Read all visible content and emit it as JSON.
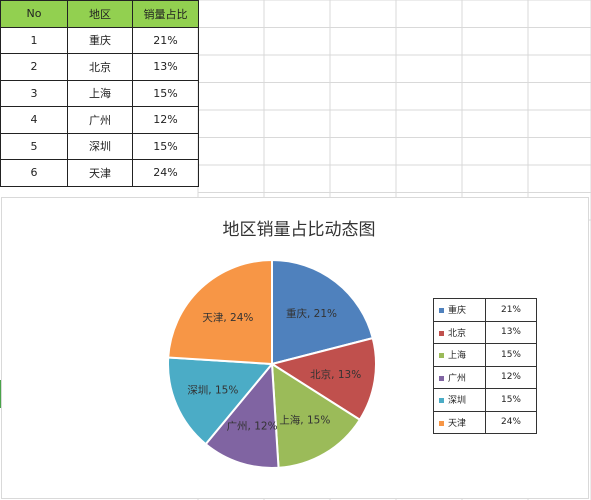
{
  "table": {
    "headers": [
      "No",
      "地区",
      "销量占比"
    ],
    "rows": [
      {
        "no": "1",
        "region": "重庆",
        "share": "21%"
      },
      {
        "no": "2",
        "region": "北京",
        "share": "13%"
      },
      {
        "no": "3",
        "region": "上海",
        "share": "15%"
      },
      {
        "no": "4",
        "region": "广州",
        "share": "12%"
      },
      {
        "no": "5",
        "region": "深圳",
        "share": "15%"
      },
      {
        "no": "6",
        "region": "天津",
        "share": "24%"
      }
    ]
  },
  "chart_data": {
    "type": "pie",
    "title": "地区销量占比动态图",
    "categories": [
      "重庆",
      "北京",
      "上海",
      "广州",
      "深圳",
      "天津"
    ],
    "values": [
      21,
      13,
      15,
      12,
      15,
      24
    ],
    "value_labels": [
      "21%",
      "13%",
      "15%",
      "12%",
      "15%",
      "24%"
    ],
    "colors": [
      "#4f81bd",
      "#c0504d",
      "#9bbb59",
      "#8064a2",
      "#4bacc6",
      "#f79646"
    ],
    "legend_placement": "right",
    "start_angle_deg": 0,
    "direction": "clockwise"
  },
  "colors": {
    "header_fill": "#92d050",
    "grid_line": "#d9d9d9"
  }
}
